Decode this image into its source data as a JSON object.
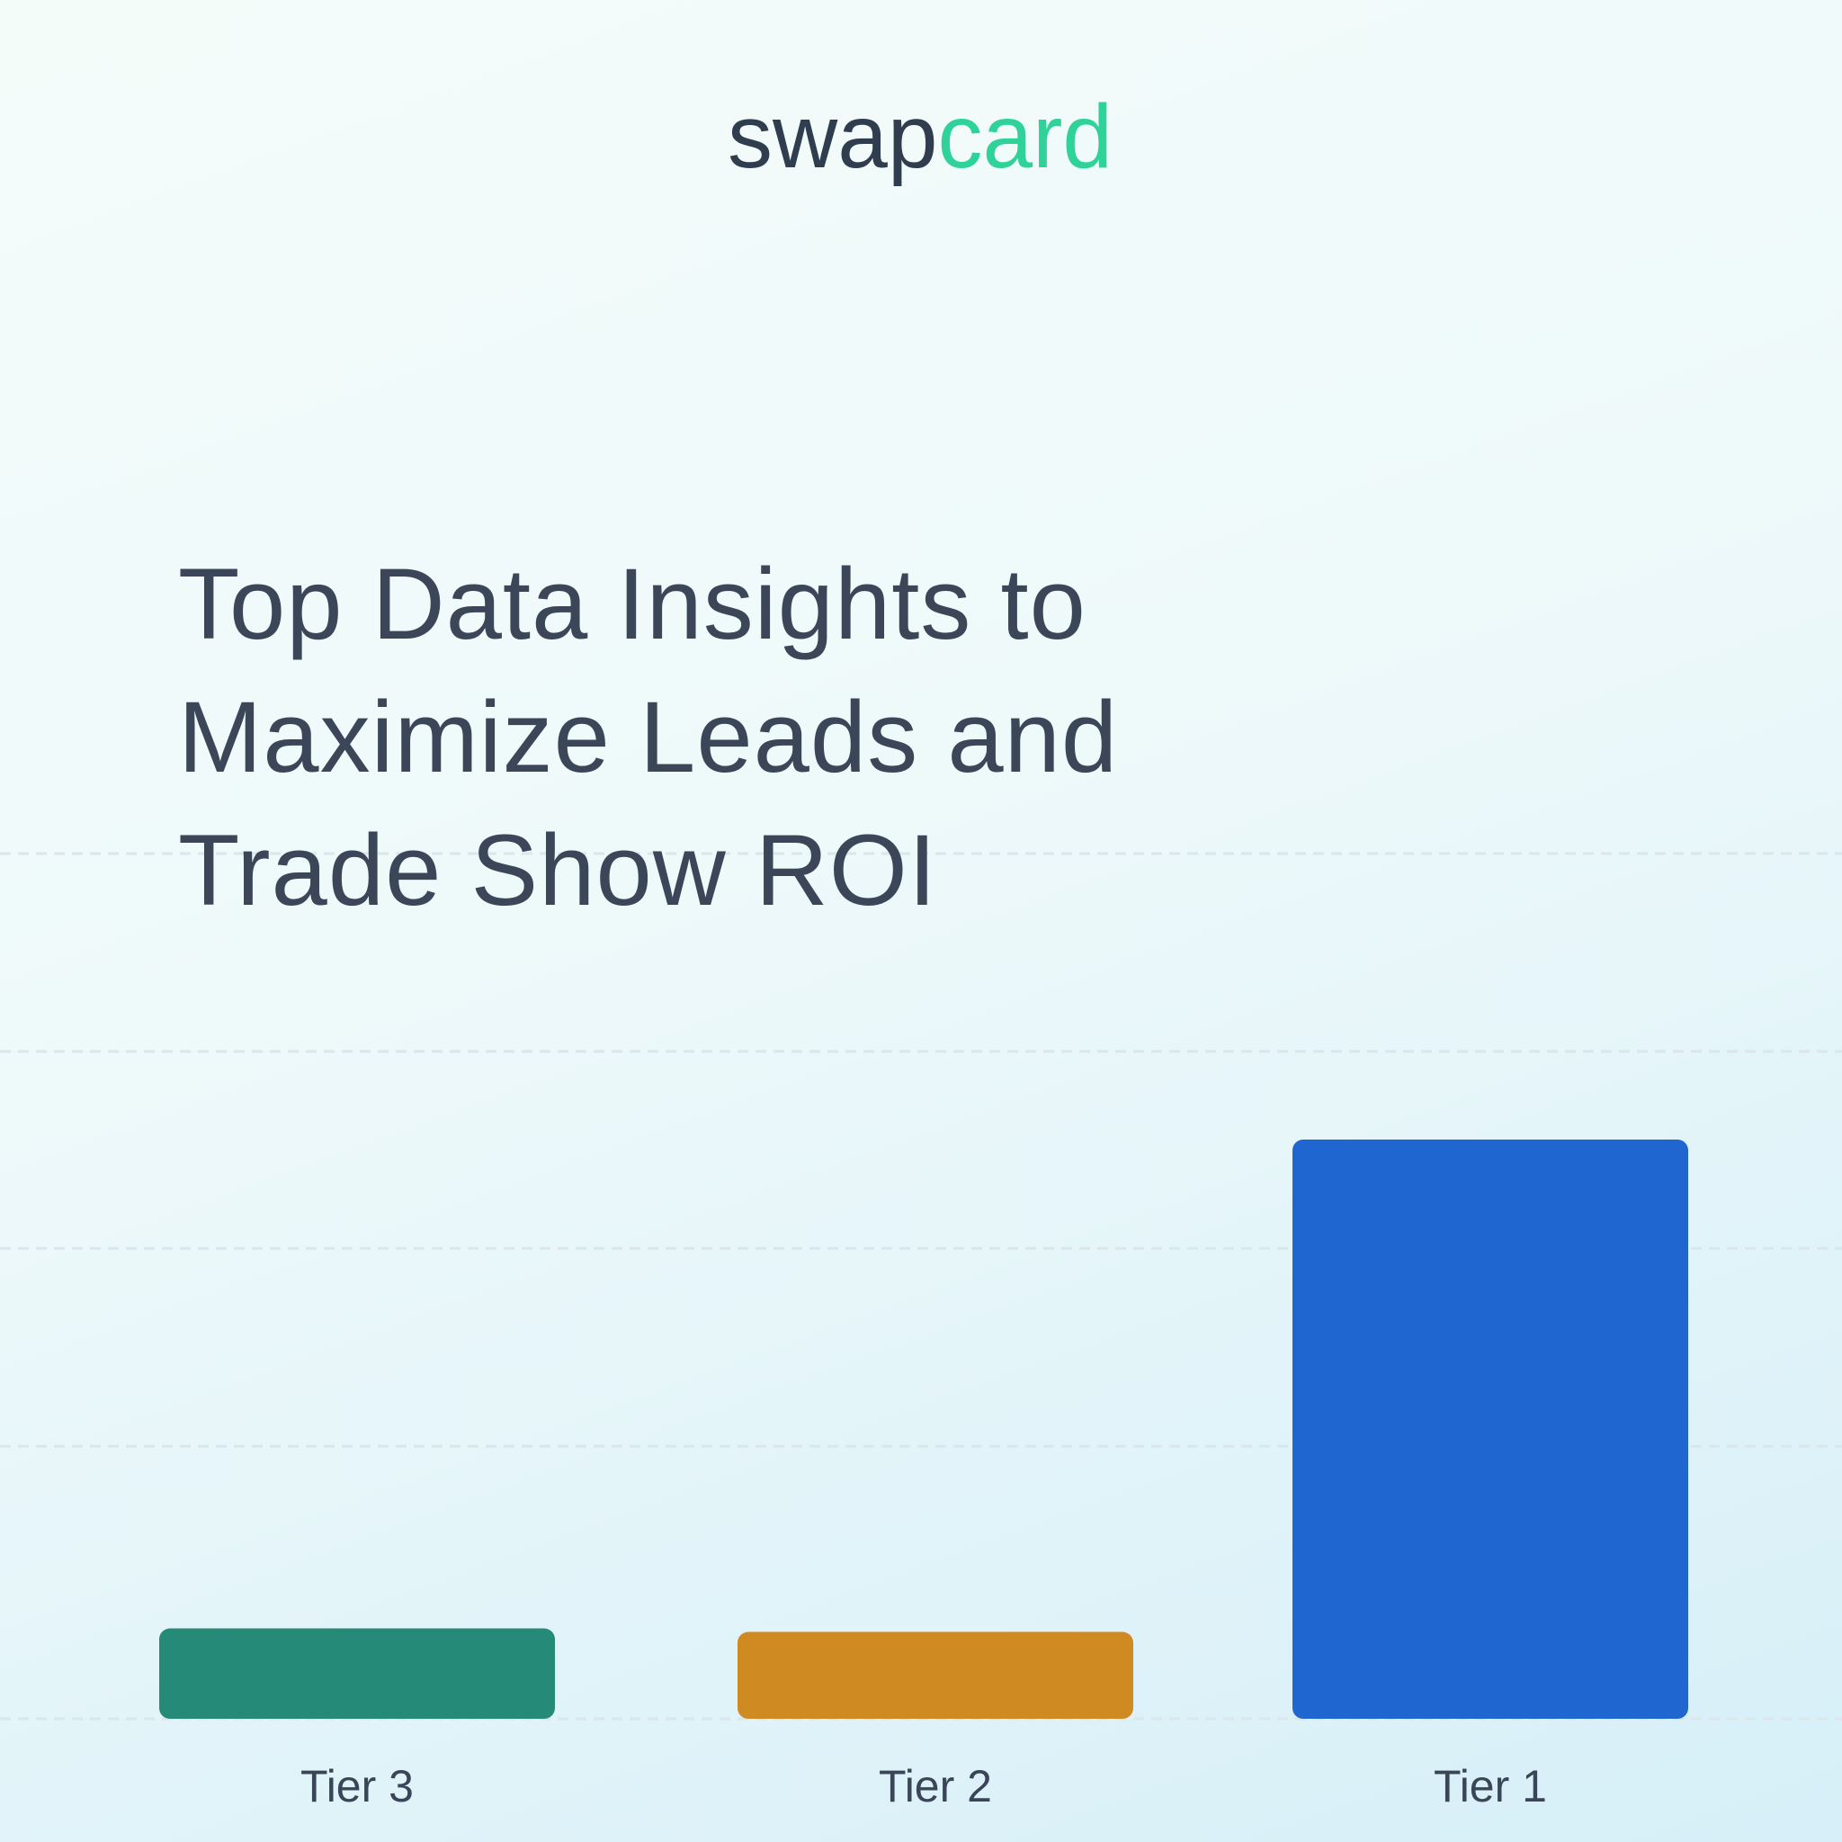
{
  "logo": [
    "swap",
    "card"
  ],
  "chart_data": {
    "type": "bar",
    "title": "Top Data Insights to Maximize Leads and Trade Show ROI",
    "categories": [
      "Tier 3",
      "Tier 2",
      "Tier 1"
    ],
    "values": [
      15.6,
      15.0,
      100
    ],
    "colors": [
      "#258a78",
      "#d08a22",
      "#1f66d1"
    ],
    "ylim": [
      0,
      100
    ]
  }
}
